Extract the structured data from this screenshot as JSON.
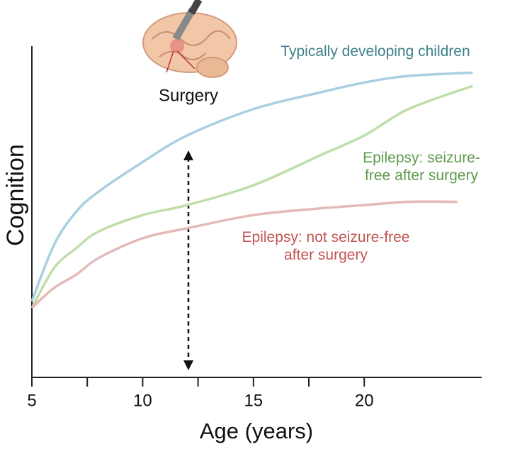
{
  "chart_data": {
    "type": "line",
    "x_label": "Age (years)",
    "y_label": "Cognition",
    "annotation": "Surgery",
    "xlim": [
      5,
      25.3
    ],
    "ylim": [
      0,
      100
    ],
    "xticks": [
      5,
      10,
      15,
      20
    ],
    "minor_xticks": [
      7.5,
      12.5,
      17.5
    ],
    "series": [
      {
        "name": "Typically developing children",
        "color": "#a9cfe0",
        "label_color": "#3d8087",
        "x": [
          5,
          6,
          7,
          8,
          10,
          12,
          15,
          18,
          20,
          22,
          24.9
        ],
        "values": [
          23,
          40,
          50,
          56,
          65,
          73,
          81,
          86,
          89,
          91,
          92
        ]
      },
      {
        "name": "Epilepsy: seizure-free after surgery",
        "color": "#bfdea8",
        "label_color": "#5e9a4c",
        "x": [
          5,
          6,
          7,
          8,
          10,
          12,
          15,
          18,
          20,
          22,
          24.9
        ],
        "values": [
          21,
          33,
          39,
          44,
          49,
          52,
          58,
          67,
          73,
          81,
          88
        ]
      },
      {
        "name": "Epilepsy: not seizure-free after surgery",
        "color": "#e6b9b9",
        "label_color": "#c25552",
        "x": [
          5,
          6,
          7,
          8,
          10,
          12,
          15,
          18,
          20,
          22,
          24.2
        ],
        "values": [
          21,
          27,
          31,
          36,
          42,
          45,
          49,
          51,
          52,
          53,
          53
        ]
      }
    ]
  }
}
